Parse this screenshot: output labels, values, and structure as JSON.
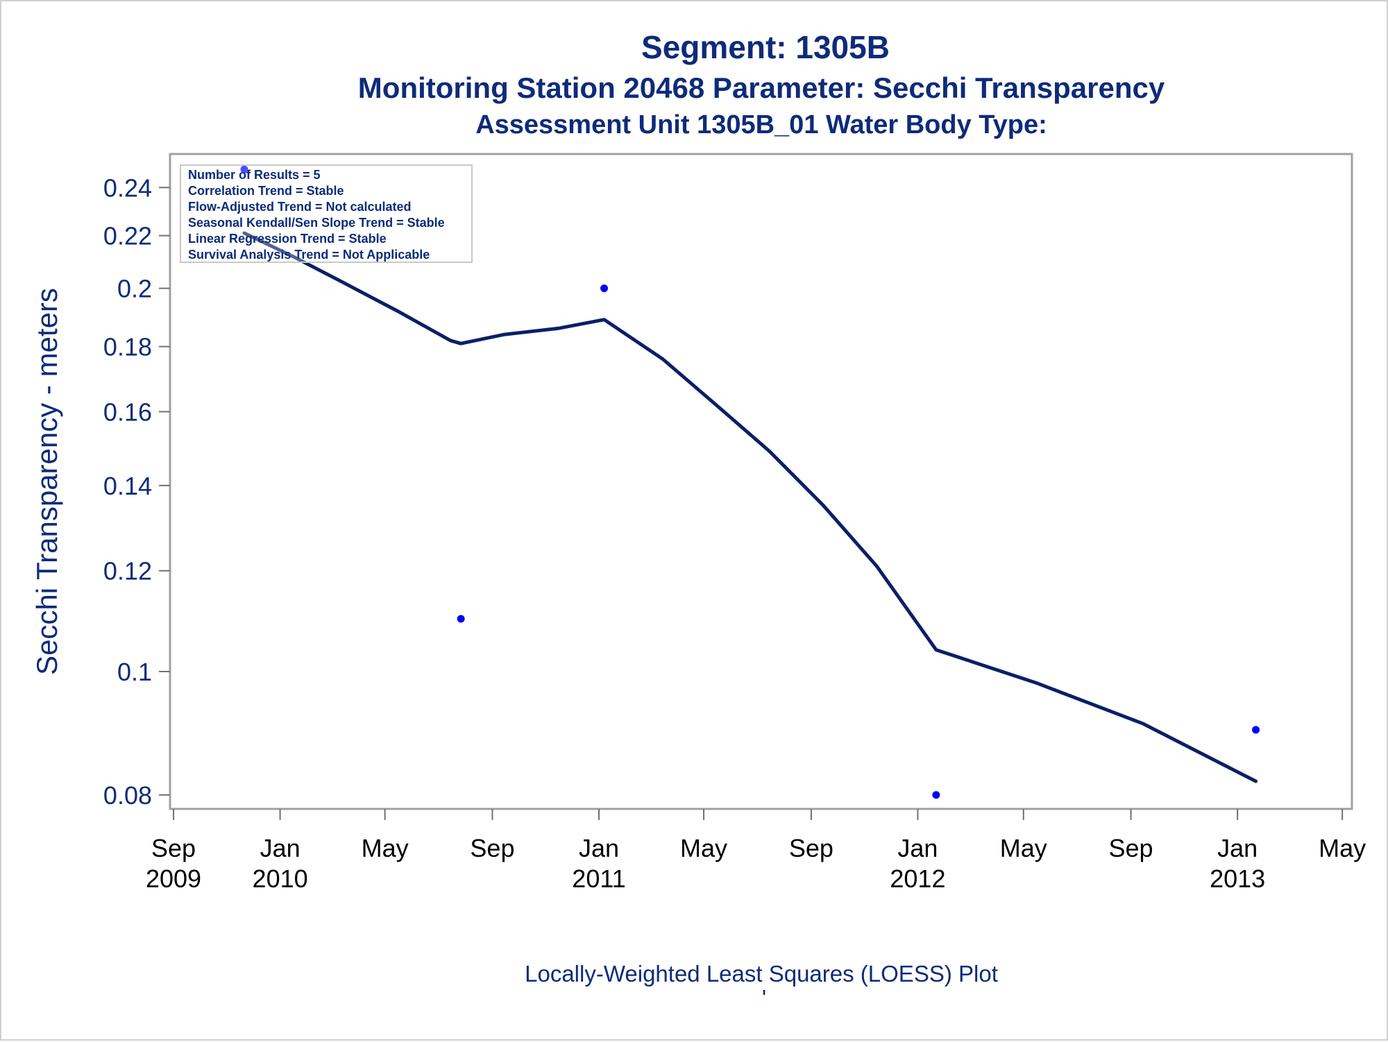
{
  "titles": {
    "line1": "Segment: 1305B",
    "line2": "Monitoring Station 20468 Parameter: Secchi Transparency",
    "line3": "Assessment Unit 1305B_01   Water Body Type:"
  },
  "footnote": {
    "text": "Locally-Weighted Least Squares (LOESS) Plot",
    "mark": "'"
  },
  "stats_box": [
    "Number of Results = 5",
    "Correlation Trend = Stable",
    "Flow-Adjusted Trend = Not calculated",
    "Seasonal Kendall/Sen Slope Trend = Stable",
    "Linear Regression Trend = Stable",
    "Survival Analysis Trend = Not Applicable"
  ],
  "colors": {
    "text": "#0e2b7a",
    "points": "#0000ff",
    "loess_line": "#0b1f66",
    "frame": "#a0a0a0"
  },
  "chart_data": {
    "type": "scatter",
    "title": "Segment: 1305B",
    "xlabel": "",
    "ylabel": "Secchi Transparency - meters",
    "y_scale": "log",
    "ylim": [
      0.078,
      0.255
    ],
    "xlim": [
      "2009-08-28",
      "2013-05-12"
    ],
    "grid": false,
    "y_ticks": [
      "0.08",
      "0.1",
      "0.12",
      "0.14",
      "0.16",
      "0.18",
      "0.2",
      "0.22",
      "0.24"
    ],
    "x_ticks": [
      {
        "date": "2009-09-01",
        "label": [
          "Sep",
          "2009"
        ]
      },
      {
        "date": "2010-01-01",
        "label": [
          "Jan",
          "2010"
        ]
      },
      {
        "date": "2010-05-01",
        "label": [
          "May",
          ""
        ]
      },
      {
        "date": "2010-09-01",
        "label": [
          "Sep",
          ""
        ]
      },
      {
        "date": "2011-01-01",
        "label": [
          "Jan",
          "2011"
        ]
      },
      {
        "date": "2011-05-01",
        "label": [
          "May",
          ""
        ]
      },
      {
        "date": "2011-09-01",
        "label": [
          "Sep",
          ""
        ]
      },
      {
        "date": "2012-01-01",
        "label": [
          "Jan",
          "2012"
        ]
      },
      {
        "date": "2012-05-01",
        "label": [
          "May",
          ""
        ]
      },
      {
        "date": "2012-09-01",
        "label": [
          "Sep",
          ""
        ]
      },
      {
        "date": "2013-01-01",
        "label": [
          "Jan",
          "2013"
        ]
      },
      {
        "date": "2013-05-01",
        "label": [
          "May",
          ""
        ]
      }
    ],
    "series": [
      {
        "kind": "points",
        "x": [
          "2009-11-21",
          "2010-07-27",
          "2011-01-07",
          "2012-01-22",
          "2013-01-22"
        ],
        "y": [
          0.248,
          0.11,
          0.2,
          0.08,
          0.09
        ]
      },
      {
        "kind": "loess",
        "x": [
          "2009-11-21",
          "2010-01-15",
          "2010-03-15",
          "2010-05-15",
          "2010-07-15",
          "2010-07-27",
          "2010-09-15",
          "2010-11-15",
          "2011-01-07",
          "2011-03-15",
          "2011-05-15",
          "2011-07-15",
          "2011-09-15",
          "2011-11-15",
          "2012-01-22",
          "2012-05-15",
          "2012-09-15",
          "2013-01-22"
        ],
        "y": [
          0.221,
          0.212,
          0.202,
          0.192,
          0.182,
          0.181,
          0.184,
          0.186,
          0.189,
          0.176,
          0.162,
          0.149,
          0.135,
          0.121,
          0.104,
          0.098,
          0.091,
          0.082
        ]
      }
    ]
  }
}
